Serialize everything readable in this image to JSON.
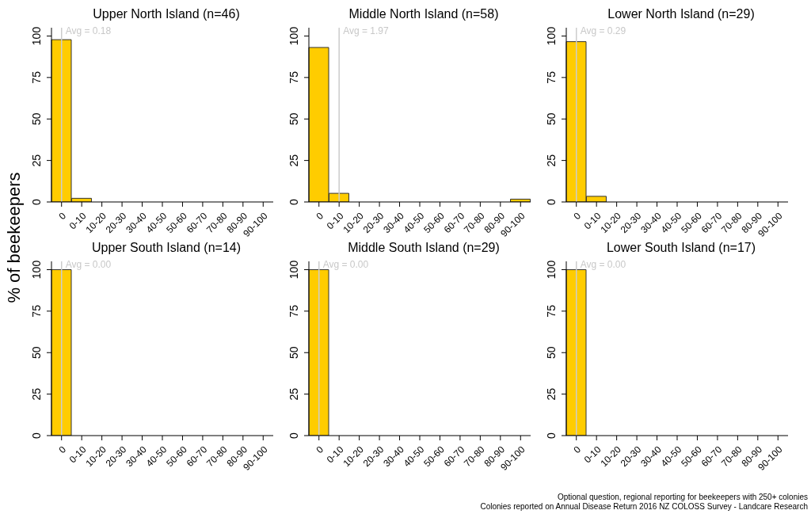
{
  "chart_data": [
    {
      "type": "bar",
      "title": "Upper North Island (n=46)",
      "ylabel": "% of beekeepers",
      "categories": [
        "0",
        "0-10",
        "10-20",
        "20-30",
        "30-40",
        "40-50",
        "50-60",
        "60-70",
        "70-80",
        "80-90",
        "90-100"
      ],
      "values": [
        97.8,
        2.2,
        0,
        0,
        0,
        0,
        0,
        0,
        0,
        0,
        0
      ],
      "color": "#ffcc00",
      "ylim": [
        0,
        105
      ],
      "yticks": [
        0,
        25,
        50,
        75,
        100
      ],
      "ref_lines": [
        {
          "axis": "x",
          "value": "0",
          "label": "Avg = 0.18",
          "color": "#cccccc"
        }
      ]
    },
    {
      "type": "bar",
      "title": "Middle North Island (n=58)",
      "categories": [
        "0",
        "0-10",
        "10-20",
        "20-30",
        "30-40",
        "40-50",
        "50-60",
        "60-70",
        "70-80",
        "80-90",
        "90-100"
      ],
      "values": [
        93.1,
        5.2,
        0,
        0,
        0,
        0,
        0,
        0,
        0,
        0,
        1.7
      ],
      "color": "#ffcc00",
      "ylim": [
        0,
        105
      ],
      "yticks": [
        0,
        25,
        50,
        75,
        100
      ],
      "ref_lines": [
        {
          "axis": "x",
          "value": "0-10",
          "label": "Avg = 1.97",
          "color": "#cccccc"
        }
      ]
    },
    {
      "type": "bar",
      "title": "Lower North Island (n=29)",
      "categories": [
        "0",
        "0-10",
        "10-20",
        "20-30",
        "30-40",
        "40-50",
        "50-60",
        "60-70",
        "70-80",
        "80-90",
        "90-100"
      ],
      "values": [
        96.6,
        3.4,
        0,
        0,
        0,
        0,
        0,
        0,
        0,
        0,
        0
      ],
      "color": "#ffcc00",
      "ylim": [
        0,
        105
      ],
      "yticks": [
        0,
        25,
        50,
        75,
        100
      ],
      "ref_lines": [
        {
          "axis": "x",
          "value": "0",
          "label": "Avg = 0.29",
          "color": "#cccccc"
        }
      ]
    },
    {
      "type": "bar",
      "title": "Upper South Island (n=14)",
      "categories": [
        "0",
        "0-10",
        "10-20",
        "20-30",
        "30-40",
        "40-50",
        "50-60",
        "60-70",
        "70-80",
        "80-90",
        "90-100"
      ],
      "values": [
        100,
        0,
        0,
        0,
        0,
        0,
        0,
        0,
        0,
        0,
        0
      ],
      "color": "#ffcc00",
      "ylim": [
        0,
        105
      ],
      "yticks": [
        0,
        25,
        50,
        75,
        100
      ],
      "ref_lines": [
        {
          "axis": "x",
          "value": "0",
          "label": "Avg = 0.00",
          "color": "#cccccc"
        }
      ]
    },
    {
      "type": "bar",
      "title": "Middle South Island (n=29)",
      "categories": [
        "0",
        "0-10",
        "10-20",
        "20-30",
        "30-40",
        "40-50",
        "50-60",
        "60-70",
        "70-80",
        "80-90",
        "90-100"
      ],
      "values": [
        100,
        0,
        0,
        0,
        0,
        0,
        0,
        0,
        0,
        0,
        0
      ],
      "color": "#ffcc00",
      "ylim": [
        0,
        105
      ],
      "yticks": [
        0,
        25,
        50,
        75,
        100
      ],
      "ref_lines": [
        {
          "axis": "x",
          "value": "0",
          "label": "Avg = 0.00",
          "color": "#cccccc"
        }
      ]
    },
    {
      "type": "bar",
      "title": "Lower South Island (n=17)",
      "categories": [
        "0",
        "0-10",
        "10-20",
        "20-30",
        "30-40",
        "40-50",
        "50-60",
        "60-70",
        "70-80",
        "80-90",
        "90-100"
      ],
      "values": [
        100,
        0,
        0,
        0,
        0,
        0,
        0,
        0,
        0,
        0,
        0
      ],
      "color": "#ffcc00",
      "ylim": [
        0,
        105
      ],
      "yticks": [
        0,
        25,
        50,
        75,
        100
      ],
      "ref_lines": [
        {
          "axis": "x",
          "value": "0",
          "label": "Avg = 0.00",
          "color": "#cccccc"
        }
      ],
      "annotations": [
        "Optional question, regional reporting for beekeepers with 250+ colonies",
        "Colonies reported on Annual Disease Return 2016 NZ COLOSS Survey - Landcare Research"
      ]
    }
  ]
}
